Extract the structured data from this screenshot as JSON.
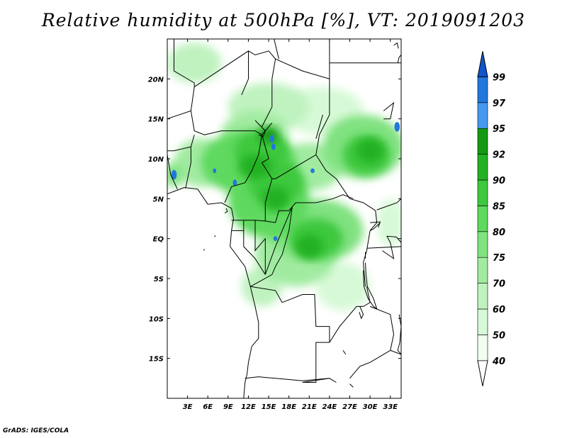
{
  "title": "Relative humidity at 500hPa [%], VT: 2019091203",
  "credit": "GrADS: IGES/COLA",
  "map": {
    "lon_range": [
      0,
      34.6
    ],
    "lat_range": [
      -20,
      25
    ],
    "x_ticks": [
      {
        "lon": 3,
        "label": "3E"
      },
      {
        "lon": 6,
        "label": "6E"
      },
      {
        "lon": 9,
        "label": "9E"
      },
      {
        "lon": 12,
        "label": "12E"
      },
      {
        "lon": 15,
        "label": "15E"
      },
      {
        "lon": 18,
        "label": "18E"
      },
      {
        "lon": 21,
        "label": "21E"
      },
      {
        "lon": 24,
        "label": "24E"
      },
      {
        "lon": 27,
        "label": "27E"
      },
      {
        "lon": 30,
        "label": "30E"
      },
      {
        "lon": 33,
        "label": "33E"
      }
    ],
    "y_ticks": [
      {
        "lat": 20,
        "label": "20N"
      },
      {
        "lat": 15,
        "label": "15N"
      },
      {
        "lat": 10,
        "label": "10N"
      },
      {
        "lat": 5,
        "label": "5N"
      },
      {
        "lat": 0,
        "label": "EQ"
      },
      {
        "lat": -5,
        "label": "5S"
      },
      {
        "lat": -10,
        "label": "10S"
      },
      {
        "lat": -15,
        "label": "15S"
      }
    ],
    "humidity_blobs": [
      {
        "lon": 12,
        "lat": 9.5,
        "rlon": 7,
        "rlat": 4,
        "level": 80
      },
      {
        "lon": 15,
        "lat": 5,
        "rlon": 6,
        "rlat": 5,
        "level": 80
      },
      {
        "lon": 22,
        "lat": 1,
        "rlon": 7,
        "rlat": 4,
        "level": 75
      },
      {
        "lon": 19,
        "lat": -2,
        "rlon": 6,
        "rlat": 4,
        "level": 70
      },
      {
        "lon": 29,
        "lat": 11.5,
        "rlon": 6,
        "rlat": 4,
        "level": 75
      },
      {
        "lon": 13,
        "lat": 13,
        "rlon": 5,
        "rlat": 3,
        "level": 70
      },
      {
        "lon": 5,
        "lat": 9.5,
        "rlon": 4,
        "rlat": 3,
        "level": 70
      },
      {
        "lon": 21,
        "lat": 9,
        "rlon": 5,
        "rlat": 3,
        "level": 70
      },
      {
        "lon": 15,
        "lat": 16.5,
        "rlon": 6,
        "rlat": 3,
        "level": 60
      },
      {
        "lon": 23,
        "lat": 16,
        "rlon": 6,
        "rlat": 3,
        "level": 50
      },
      {
        "lon": 4,
        "lat": 22,
        "rlon": 4,
        "rlat": 2.5,
        "level": 60
      },
      {
        "lon": 14,
        "lat": 11,
        "rlon": 4,
        "rlat": 2.5,
        "level": 85
      },
      {
        "lon": 16,
        "lat": 7,
        "rlon": 4,
        "rlat": 3,
        "level": 85
      },
      {
        "lon": 22,
        "lat": 0,
        "rlon": 4,
        "rlat": 2.5,
        "level": 85
      },
      {
        "lon": 29.5,
        "lat": 10.5,
        "rlon": 3.5,
        "rlat": 2.5,
        "level": 85
      },
      {
        "lon": 13,
        "lat": 9,
        "rlon": 2.5,
        "rlat": 1.5,
        "level": 90
      },
      {
        "lon": 16,
        "lat": 5,
        "rlon": 2,
        "rlat": 1.5,
        "level": 90
      },
      {
        "lon": 21,
        "lat": -1,
        "rlon": 2,
        "rlat": 1.5,
        "level": 90
      },
      {
        "lon": 30,
        "lat": 11,
        "rlon": 2,
        "rlat": 1.5,
        "level": 90
      },
      {
        "lon": 15,
        "lat": 13,
        "rlon": 1.5,
        "rlat": 1,
        "level": 92
      },
      {
        "lon": 1,
        "lat": 8,
        "rlon": 1.5,
        "rlat": 1.5,
        "level": 75
      },
      {
        "lon": 14,
        "lat": -6,
        "rlon": 3,
        "rlat": 2.5,
        "level": 60
      },
      {
        "lon": 26,
        "lat": -6,
        "rlon": 4,
        "rlat": 3,
        "level": 50
      },
      {
        "lon": 33,
        "lat": 2,
        "rlon": 2,
        "rlat": 3,
        "level": 50
      },
      {
        "lon": 15.5,
        "lat": 12.5,
        "rlon": 0.3,
        "rlat": 0.5,
        "level": 97
      },
      {
        "lon": 15.7,
        "lat": 11.5,
        "rlon": 0.3,
        "rlat": 0.4,
        "level": 97
      },
      {
        "lon": 1,
        "lat": 8,
        "rlon": 0.4,
        "rlat": 0.6,
        "level": 97
      },
      {
        "lon": 10,
        "lat": 7,
        "rlon": 0.3,
        "rlat": 0.4,
        "level": 97
      },
      {
        "lon": 7,
        "lat": 8.5,
        "rlon": 0.25,
        "rlat": 0.3,
        "level": 97
      },
      {
        "lon": 21.5,
        "lat": 8.5,
        "rlon": 0.3,
        "rlat": 0.3,
        "level": 97
      },
      {
        "lon": 34,
        "lat": 14,
        "rlon": 0.4,
        "rlat": 0.6,
        "level": 97
      },
      {
        "lon": 16,
        "lat": 0,
        "rlon": 0.3,
        "rlat": 0.3,
        "level": 97
      }
    ],
    "borders": [
      [
        [
          1,
          25
        ],
        [
          1,
          21
        ],
        [
          4,
          19.5
        ],
        [
          4,
          19
        ],
        [
          3.5,
          16
        ],
        [
          0,
          15
        ]
      ],
      [
        [
          3.5,
          16
        ],
        [
          4,
          13.5
        ],
        [
          5.5,
          13
        ],
        [
          8,
          13.5
        ],
        [
          11,
          13.5
        ],
        [
          13,
          13.5
        ],
        [
          14,
          13
        ],
        [
          15.5,
          14.5
        ]
      ],
      [
        [
          4,
          19
        ],
        [
          12,
          23.5
        ],
        [
          13,
          23
        ],
        [
          15,
          23.5
        ],
        [
          16,
          22.5
        ],
        [
          15.5,
          20
        ],
        [
          15.5,
          16.5
        ],
        [
          14,
          14
        ]
      ],
      [
        [
          16,
          22.5
        ],
        [
          20,
          21
        ],
        [
          24,
          20
        ],
        [
          24,
          25
        ]
      ],
      [
        [
          24,
          20
        ],
        [
          24,
          15.5
        ],
        [
          22.5,
          13
        ],
        [
          22,
          10.5
        ],
        [
          23.5,
          8.5
        ],
        [
          25,
          7.5
        ],
        [
          27,
          5
        ]
      ],
      [
        [
          24,
          22
        ],
        [
          34.6,
          22
        ]
      ],
      [
        [
          0,
          11
        ],
        [
          1,
          11
        ],
        [
          3.5,
          11.5
        ],
        [
          3.5,
          9.5
        ],
        [
          2.7,
          6.3
        ]
      ],
      [
        [
          0,
          10.5
        ],
        [
          0.5,
          8
        ],
        [
          1.5,
          6.2
        ]
      ],
      [
        [
          3.5,
          11.5
        ],
        [
          4,
          13
        ]
      ],
      [
        [
          8.5,
          4.5
        ],
        [
          9.5,
          6.5
        ],
        [
          11.5,
          7
        ],
        [
          12.5,
          8.5
        ],
        [
          13.5,
          10.5
        ],
        [
          14,
          13
        ]
      ],
      [
        [
          14,
          13
        ],
        [
          15,
          10
        ],
        [
          14,
          9.5
        ],
        [
          15.5,
          7.5
        ],
        [
          16,
          7.5
        ],
        [
          19,
          9
        ],
        [
          22,
          10.5
        ]
      ],
      [
        [
          14.5,
          2.2
        ],
        [
          14.5,
          4.5
        ],
        [
          15.5,
          7.5
        ]
      ],
      [
        [
          16,
          2
        ],
        [
          16.5,
          3.5
        ],
        [
          18,
          3.5
        ],
        [
          19,
          4.5
        ],
        [
          22,
          4.5
        ],
        [
          24.5,
          5
        ],
        [
          26,
          5.5
        ],
        [
          27.5,
          5
        ]
      ],
      [
        [
          9.5,
          2.3
        ],
        [
          11.3,
          2.3
        ],
        [
          13,
          2.3
        ],
        [
          14.5,
          2.2
        ],
        [
          16,
          2
        ]
      ],
      [
        [
          9.5,
          1
        ],
        [
          11.3,
          1
        ],
        [
          11.3,
          2.3
        ]
      ],
      [
        [
          11.3,
          1
        ],
        [
          11.3,
          -1
        ],
        [
          13,
          -2.5
        ],
        [
          14.5,
          -4.5
        ]
      ],
      [
        [
          13,
          2.3
        ],
        [
          13,
          -1.5
        ],
        [
          14.5,
          0
        ],
        [
          14.5,
          -4.5
        ],
        [
          16,
          -1
        ],
        [
          17.5,
          2
        ],
        [
          18.5,
          4
        ]
      ],
      [
        [
          18.5,
          4
        ],
        [
          18,
          1
        ],
        [
          17,
          -2
        ],
        [
          16,
          -3.5
        ],
        [
          15.5,
          -4.5
        ],
        [
          12.3,
          -6
        ]
      ],
      [
        [
          12.3,
          -6
        ],
        [
          16,
          -6.5
        ],
        [
          17,
          -8
        ],
        [
          18.5,
          -7.5
        ],
        [
          20,
          -7
        ],
        [
          21.8,
          -7
        ],
        [
          22,
          -11
        ],
        [
          24,
          -11
        ],
        [
          24,
          -13
        ]
      ],
      [
        [
          24,
          -13
        ],
        [
          22,
          -13
        ],
        [
          22,
          -18
        ],
        [
          21,
          -18
        ],
        [
          20,
          -18
        ],
        [
          24,
          -17.5
        ]
      ],
      [
        [
          11.5,
          -17.5
        ],
        [
          13.5,
          -17.3
        ],
        [
          16,
          -17.5
        ],
        [
          20,
          -17.8
        ],
        [
          24,
          -17.5
        ],
        [
          25,
          -18
        ]
      ],
      [
        [
          24,
          -13
        ],
        [
          25.5,
          -11
        ],
        [
          28,
          -8.5
        ],
        [
          29,
          -8.5
        ],
        [
          30,
          -8
        ],
        [
          29.5,
          -6
        ]
      ],
      [
        [
          27,
          5
        ],
        [
          29,
          4.5
        ],
        [
          30.8,
          3.5
        ],
        [
          31,
          2
        ],
        [
          30,
          1
        ]
      ],
      [
        [
          30,
          1
        ],
        [
          29.5,
          -1.5
        ],
        [
          29,
          -3
        ],
        [
          29.3,
          -6
        ]
      ],
      [
        [
          31,
          3.6
        ],
        [
          34,
          4.5
        ],
        [
          34.6,
          5
        ]
      ],
      [
        [
          29.5,
          -1.2
        ],
        [
          34.6,
          -1
        ]
      ],
      [
        [
          30,
          1
        ],
        [
          30.5,
          1.2
        ],
        [
          31.5,
          2
        ]
      ],
      [
        [
          30,
          -8.5
        ],
        [
          33,
          -9.5
        ],
        [
          33.5,
          -12
        ],
        [
          33,
          -14
        ],
        [
          30,
          -15.5
        ],
        [
          28.5,
          -16
        ],
        [
          27,
          -17.5
        ]
      ],
      [
        [
          33,
          -14
        ],
        [
          34.6,
          -14.5
        ]
      ],
      [
        [
          22,
          12.5
        ],
        [
          23,
          15.5
        ]
      ],
      [
        [
          16.5,
          22.5
        ],
        [
          15.8,
          25
        ]
      ],
      [
        [
          11,
          18
        ],
        [
          12,
          20
        ],
        [
          12,
          23.5
        ]
      ]
    ],
    "coastlines": [
      [
        [
          0,
          5.6
        ],
        [
          2.5,
          6.4
        ],
        [
          4.5,
          6.2
        ],
        [
          6,
          4.3
        ],
        [
          8,
          4.5
        ],
        [
          9.5,
          3.8
        ],
        [
          9.8,
          2.5
        ],
        [
          9.5,
          1
        ],
        [
          9.3,
          -1
        ],
        [
          11.5,
          -3.5
        ],
        [
          12.3,
          -6
        ],
        [
          13,
          -8.5
        ],
        [
          13.5,
          -10.5
        ],
        [
          13.5,
          -12.5
        ],
        [
          12.5,
          -13.5
        ],
        [
          12,
          -15.5
        ],
        [
          11.8,
          -17
        ],
        [
          11.5,
          -18
        ],
        [
          11.3,
          -20
        ]
      ],
      [
        [
          31.8,
          -1.5
        ],
        [
          33.5,
          -2.5
        ],
        [
          33,
          -0.5
        ],
        [
          32.5,
          0.3
        ],
        [
          33.9,
          0.2
        ],
        [
          34.6,
          -0.5
        ]
      ],
      [
        [
          29.3,
          -3
        ],
        [
          29.4,
          -4.5
        ],
        [
          29.6,
          -6
        ],
        [
          30.5,
          -7.5
        ],
        [
          31,
          -8.8
        ],
        [
          30.5,
          -8.5
        ],
        [
          29.7,
          -7.5
        ],
        [
          29.1,
          -6
        ],
        [
          29,
          -4
        ]
      ],
      [
        [
          34.3,
          -9.5
        ],
        [
          34.6,
          -11
        ],
        [
          34.4,
          -13
        ],
        [
          34.1,
          -14
        ],
        [
          34.6,
          -14.5
        ]
      ],
      [
        [
          28.5,
          -8.5
        ],
        [
          29,
          -9.5
        ],
        [
          28.7,
          -10
        ],
        [
          28.4,
          -9.2
        ]
      ],
      [
        [
          29.3,
          -1.7
        ],
        [
          29.3,
          -2.5
        ]
      ],
      [
        [
          30,
          2
        ],
        [
          31.5,
          2.1
        ],
        [
          31.2,
          1.4
        ]
      ],
      [
        [
          8.7,
          3.8
        ],
        [
          8.9,
          3.4
        ],
        [
          8.5,
          3.2
        ]
      ],
      [
        [
          7,
          0.2
        ],
        [
          7.1,
          0.4
        ]
      ],
      [
        [
          5.4,
          -1.5
        ],
        [
          5.5,
          -1.3
        ]
      ],
      [
        [
          13,
          14.8
        ],
        [
          14.5,
          13.5
        ],
        [
          14.2,
          12.8
        ],
        [
          13.5,
          13
        ]
      ],
      [
        [
          32,
          15
        ],
        [
          33,
          15
        ],
        [
          33.5,
          17
        ],
        [
          32,
          16
        ]
      ],
      [
        [
          34.1,
          22
        ],
        [
          34.3,
          22.7
        ],
        [
          34.6,
          23
        ]
      ],
      [
        [
          33.5,
          24.2
        ],
        [
          34,
          24.5
        ],
        [
          34.2,
          23.8
        ]
      ],
      [
        [
          27,
          -18.2
        ],
        [
          27.5,
          -18.6
        ]
      ],
      [
        [
          26,
          -14
        ],
        [
          26.4,
          -14.5
        ]
      ]
    ]
  },
  "colorbar": {
    "levels": [
      {
        "value": "40",
        "color": "#f0fff0"
      },
      {
        "value": "50",
        "color": "#d7f9d7"
      },
      {
        "value": "60",
        "color": "#bff2bf"
      },
      {
        "value": "70",
        "color": "#a1eba1"
      },
      {
        "value": "75",
        "color": "#80e280"
      },
      {
        "value": "80",
        "color": "#5fd95f"
      },
      {
        "value": "85",
        "color": "#3dc83d"
      },
      {
        "value": "90",
        "color": "#22b122"
      },
      {
        "value": "92",
        "color": "#149914"
      },
      {
        "value": "95",
        "color": "#4499ee"
      },
      {
        "value": "97",
        "color": "#2277dd"
      },
      {
        "value": "99",
        "color": "#1155cc"
      }
    ],
    "low_color": "#ffffff",
    "high_color": "#1155cc"
  }
}
